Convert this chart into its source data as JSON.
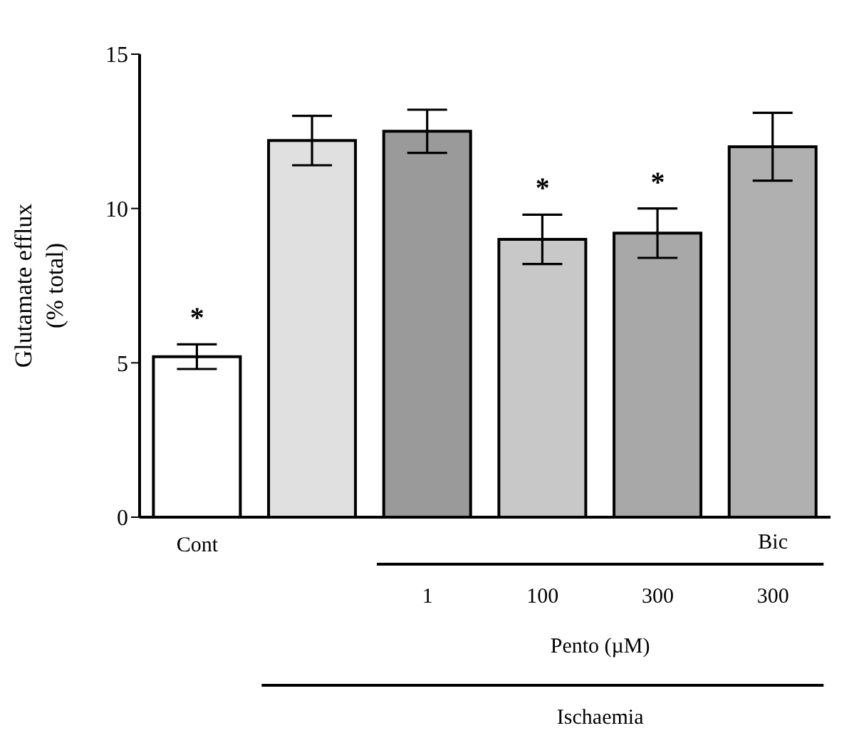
{
  "chart_data": {
    "type": "bar",
    "ylabel": "Glutamate efflux\n(% total)",
    "categories": [
      "Cont",
      null,
      "1",
      "100",
      "300",
      "300"
    ],
    "values": [
      5.2,
      12.2,
      12.5,
      9.0,
      9.2,
      12.0
    ],
    "errors": [
      0.4,
      0.8,
      0.7,
      0.8,
      0.8,
      1.1
    ],
    "colors": [
      "#ffffff",
      "#e0e0e0",
      "#9a9a9a",
      "#c8c8c8",
      "#a8a8a8",
      "#b0b0b0"
    ],
    "ylim": [
      0,
      15
    ],
    "yticks": [
      0,
      5,
      10,
      15
    ],
    "grid": false,
    "legend": false,
    "annotations": [
      {
        "text": "*",
        "x": "Cont",
        "y": 5.2
      },
      {
        "text": "*",
        "x": "100",
        "y": 9.0
      },
      {
        "text": "*",
        "x": "300",
        "y": 9.2
      },
      "Bic",
      "Pento (µM)",
      "Ischaemia"
    ]
  }
}
